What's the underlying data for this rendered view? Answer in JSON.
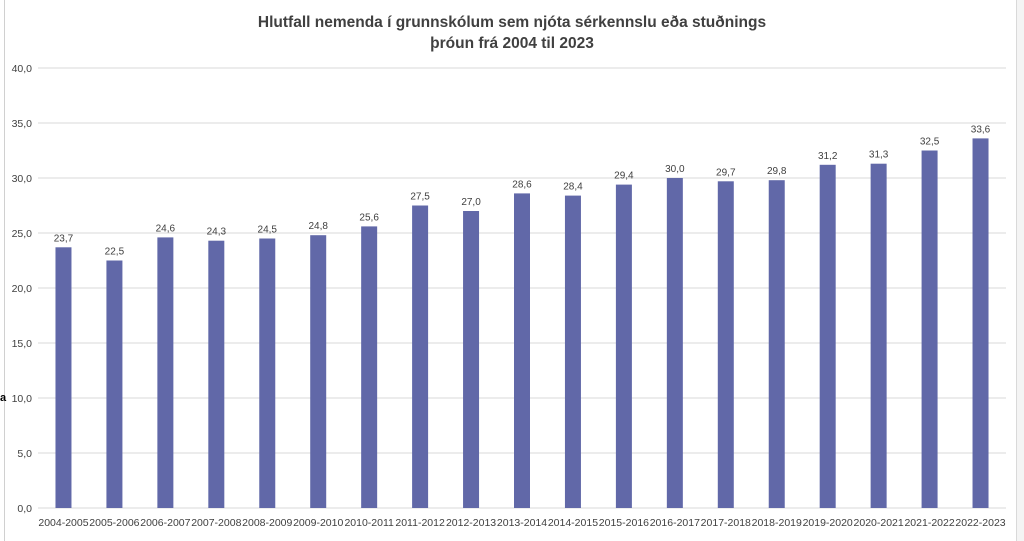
{
  "colors": {
    "bar": "#6168a8",
    "grid": "#d9d9d9",
    "axis_text": "#404040",
    "title": "#404040"
  },
  "stray_mark": "a",
  "chart_data": {
    "type": "bar",
    "title": "Hlutfall nemenda í grunnskólum sem njóta sérkennslu eða stuðnings",
    "subtitle": "þróun frá 2004 til 2023",
    "xlabel": "",
    "ylabel": "",
    "ylim": [
      0,
      40
    ],
    "yticks": [
      "0,0",
      "5,0",
      "10,0",
      "15,0",
      "20,0",
      "25,0",
      "30,0",
      "35,0",
      "40,0"
    ],
    "grid": true,
    "legend": "none",
    "categories": [
      "2004-2005",
      "2005-2006",
      "2006-2007",
      "2007-2008",
      "2008-2009",
      "2009-2010",
      "2010-2011",
      "2011-2012",
      "2012-2013",
      "2013-2014",
      "2014-2015",
      "2015-2016",
      "2016-2017",
      "2017-2018",
      "2018-2019",
      "2019-2020",
      "2020-2021",
      "2021-2022",
      "2022-2023"
    ],
    "values": [
      23.7,
      22.5,
      24.6,
      24.3,
      24.5,
      24.8,
      25.6,
      27.5,
      27.0,
      28.6,
      28.4,
      29.4,
      30.0,
      29.7,
      29.8,
      31.2,
      31.3,
      32.5,
      33.6
    ],
    "value_labels": [
      "23,7",
      "22,5",
      "24,6",
      "24,3",
      "24,5",
      "24,8",
      "25,6",
      "27,5",
      "27,0",
      "28,6",
      "28,4",
      "29,4",
      "30,0",
      "29,7",
      "29,8",
      "31,2",
      "31,3",
      "32,5",
      "33,6"
    ]
  }
}
